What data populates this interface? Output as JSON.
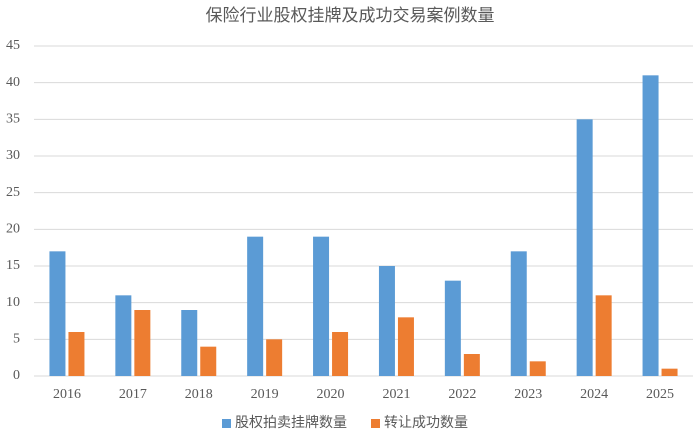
{
  "chart_data": {
    "type": "bar",
    "title": "保险行业股权挂牌及成功交易案例数量",
    "categories": [
      "2016",
      "2017",
      "2018",
      "2019",
      "2020",
      "2021",
      "2022",
      "2023",
      "2024",
      "2025"
    ],
    "series": [
      {
        "name": "股权拍卖挂牌数量",
        "color": "#5b9bd5",
        "values": [
          17,
          11,
          9,
          19,
          19,
          15,
          13,
          17,
          35,
          41
        ]
      },
      {
        "name": "转让成功数量",
        "color": "#ed7d31",
        "values": [
          6,
          9,
          4,
          5,
          6,
          8,
          3,
          2,
          11,
          1
        ]
      }
    ],
    "ylim": [
      0,
      45
    ],
    "yticks": [
      0,
      5,
      10,
      15,
      20,
      25,
      30,
      35,
      40,
      45
    ],
    "grid": true,
    "legend": "bottom"
  }
}
